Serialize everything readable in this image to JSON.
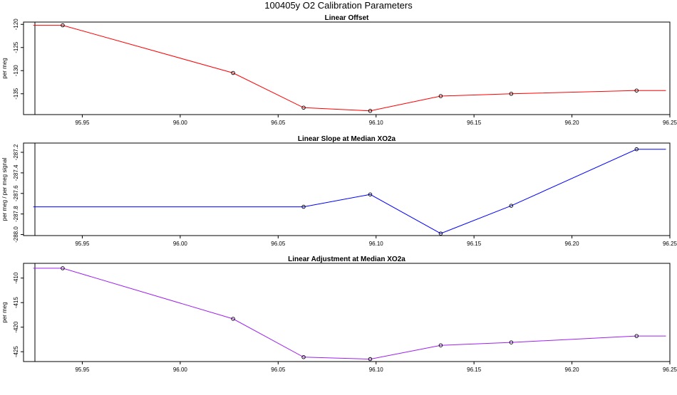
{
  "figure": {
    "title": "100405y   O2 Calibration Parameters"
  },
  "chart_data": [
    {
      "type": "line",
      "title": "Linear Offset",
      "xlabel": "",
      "ylabel": "per meg",
      "xlim": [
        95.92,
        96.25
      ],
      "ylim": [
        -139.5,
        -119.5
      ],
      "x_ticks": [
        "95.95",
        "96.00",
        "96.05",
        "96.10",
        "96.15",
        "96.20",
        "96.25"
      ],
      "y_ticks": [
        "-120",
        "-125",
        "-130",
        "-135"
      ],
      "series": [
        {
          "color": "#ff0000",
          "line_x": [
            95.925,
            95.94,
            96.027,
            96.063,
            96.097,
            96.133,
            96.169,
            96.233,
            96.248
          ],
          "line_y": [
            -120.2,
            -120.2,
            -130.5,
            -138.0,
            -138.7,
            -135.5,
            -135.0,
            -134.3,
            -134.3
          ],
          "points_x": [
            95.94,
            96.027,
            96.063,
            96.097,
            96.133,
            96.169,
            96.233
          ],
          "points_y": [
            -120.2,
            -130.5,
            -138.0,
            -138.7,
            -135.5,
            -135.0,
            -134.3
          ]
        }
      ]
    },
    {
      "type": "line",
      "title": "Linear Slope at Median XO2a",
      "xlabel": "",
      "ylabel": "per meg / per meg signal",
      "xlim": [
        95.92,
        96.25
      ],
      "ylim": [
        -288.01,
        -287.11
      ],
      "x_ticks": [
        "95.95",
        "96.00",
        "96.05",
        "96.10",
        "96.15",
        "96.20",
        "96.25"
      ],
      "y_ticks": [
        "-288.0",
        "-287.8",
        "-287.6",
        "-287.4",
        "-287.2"
      ],
      "series": [
        {
          "color": "#0000ff",
          "line_x": [
            95.925,
            96.063,
            96.097,
            96.133,
            96.169,
            96.233,
            96.248
          ],
          "line_y": [
            -287.73,
            -287.73,
            -287.61,
            -287.99,
            -287.72,
            -287.17,
            -287.17
          ],
          "points_x": [
            96.063,
            96.097,
            96.133,
            96.169,
            96.233
          ],
          "points_y": [
            -287.73,
            -287.61,
            -287.99,
            -287.72,
            -287.17
          ]
        }
      ]
    },
    {
      "type": "line",
      "title": "Linear Adjustment at Median XO2a",
      "xlabel": "",
      "ylabel": "per meg",
      "xlim": [
        95.92,
        96.25
      ],
      "ylim": [
        -427.0,
        -407.0
      ],
      "x_ticks": [
        "95.95",
        "96.00",
        "96.05",
        "96.10",
        "96.15",
        "96.20",
        "96.25"
      ],
      "y_ticks": [
        "-410",
        "-415",
        "-420",
        "-425"
      ],
      "series": [
        {
          "color": "#a020f0",
          "line_x": [
            95.925,
            95.94,
            96.027,
            96.063,
            96.097,
            96.133,
            96.169,
            96.233,
            96.248
          ],
          "line_y": [
            -408.0,
            -408.0,
            -418.3,
            -426.1,
            -426.5,
            -423.7,
            -423.1,
            -421.8,
            -421.8
          ],
          "points_x": [
            95.94,
            96.027,
            96.063,
            96.097,
            96.133,
            96.169,
            96.233
          ],
          "points_y": [
            -408.0,
            -418.3,
            -426.1,
            -426.5,
            -423.7,
            -423.1,
            -421.8
          ]
        }
      ]
    }
  ]
}
